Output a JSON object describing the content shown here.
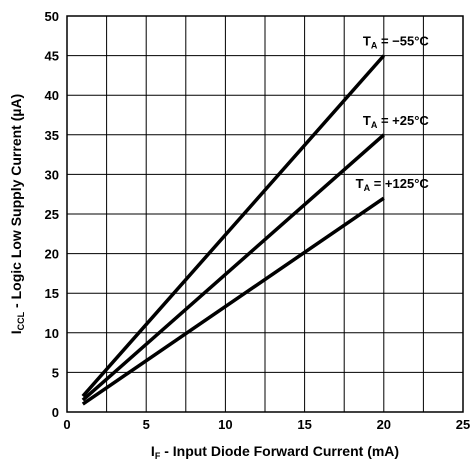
{
  "chart_data": {
    "type": "line",
    "xlabel": {
      "main": "I",
      "sub": "F",
      "rest": " - Input Diode Forward Current (mA)"
    },
    "ylabel": {
      "main": "I",
      "sub": "CCL",
      "rest": " - Logic Low Supply Current (µA)"
    },
    "xlim": [
      0,
      25
    ],
    "ylim": [
      0,
      50
    ],
    "x_ticks": [
      "0",
      "5",
      "10",
      "15",
      "20",
      "25"
    ],
    "y_ticks": [
      "0",
      "5",
      "10",
      "15",
      "20",
      "25",
      "30",
      "35",
      "40",
      "45",
      "50"
    ],
    "grid": true,
    "series": [
      {
        "name": "TA = −55°C",
        "label": {
          "main": "T",
          "sub": "A",
          "rest": " = −55°C"
        },
        "x": [
          1,
          20
        ],
        "y": [
          2.0,
          45.0
        ]
      },
      {
        "name": "TA = +25°C",
        "label": {
          "main": "T",
          "sub": "A",
          "rest": " = +25°C"
        },
        "x": [
          1,
          20
        ],
        "y": [
          1.5,
          35.0
        ]
      },
      {
        "name": "TA = +125°C",
        "label": {
          "main": "T",
          "sub": "A",
          "rest": " = +125°C"
        },
        "x": [
          1,
          20
        ],
        "y": [
          1.0,
          27.0
        ]
      }
    ],
    "line_color": "#000000"
  }
}
